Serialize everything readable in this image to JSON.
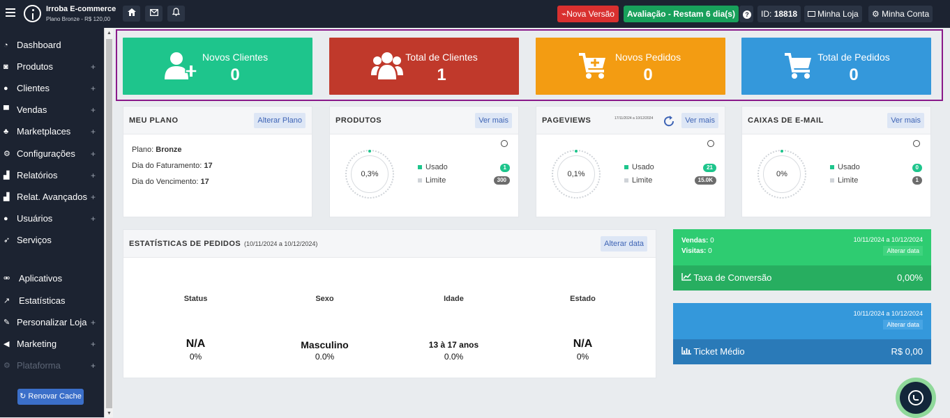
{
  "header": {
    "brand_title": "Irroba E-commerce",
    "brand_subtitle": "Plano Bronze - R$ 120,00",
    "nova_versao": "Nova Versão",
    "avaliacao": "Avaliação - Restam 6 dia(s)",
    "help": "?",
    "id_label": "ID:",
    "id_value": "18818",
    "minha_loja": "Minha Loja",
    "minha_conta": "Minha Conta"
  },
  "sidebar": {
    "items": [
      {
        "label": "Dashboard",
        "icon": "dashboard-icon",
        "expandable": false
      },
      {
        "label": "Produtos",
        "icon": "camera-icon",
        "expandable": true
      },
      {
        "label": "Clientes",
        "icon": "users-icon",
        "expandable": true
      },
      {
        "label": "Vendas",
        "icon": "cart-icon",
        "expandable": true
      },
      {
        "label": "Marketplaces",
        "icon": "sitemap-icon",
        "expandable": true
      },
      {
        "label": "Configurações",
        "icon": "cogs-icon",
        "expandable": true
      },
      {
        "label": "Relatórios",
        "icon": "bar-chart-icon",
        "expandable": true
      },
      {
        "label": "Relat. Avançados",
        "icon": "bar-chart-icon",
        "expandable": true
      },
      {
        "label": "Usuários",
        "icon": "users-icon",
        "expandable": true
      },
      {
        "label": "Serviços",
        "icon": "rocket-icon",
        "expandable": false
      },
      {
        "label": "Aplicativos",
        "icon": "bicycle-icon",
        "expandable": false
      },
      {
        "label": "Estatísticas",
        "icon": "line-chart-icon",
        "expandable": false
      },
      {
        "label": "Personalizar Loja",
        "icon": "brush-icon",
        "expandable": true
      },
      {
        "label": "Marketing",
        "icon": "bullhorn-icon",
        "expandable": true
      },
      {
        "label": "Plataforma",
        "icon": "cogs-icon",
        "expandable": true
      }
    ],
    "renovar_cache": "Renovar Cache"
  },
  "stat_boxes": [
    {
      "title": "Novos Clientes",
      "value": "0",
      "color": "#1ec58c",
      "icon": "user-plus-icon"
    },
    {
      "title": "Total de Clientes",
      "value": "1",
      "color": "#c0392b",
      "icon": "users-icon"
    },
    {
      "title": "Novos Pedidos",
      "value": "0",
      "color": "#f39c12",
      "icon": "cart-plus-icon"
    },
    {
      "title": "Total de Pedidos",
      "value": "0",
      "color": "#3498db",
      "icon": "cart-icon"
    }
  ],
  "meu_plano": {
    "title": "MEU PLANO",
    "button": "Alterar Plano",
    "plano_label": "Plano:",
    "plano_value": "Bronze",
    "faturamento_label": "Dia do Faturamento:",
    "faturamento_value": "17",
    "vencimento_label": "Dia do Vencimento:",
    "vencimento_value": "17"
  },
  "produtos": {
    "title": "PRODUTOS",
    "button": "Ver mais",
    "percent": "0,3%",
    "usado_label": "Usado",
    "usado_value": "1",
    "limite_label": "Limite",
    "limite_value": "300"
  },
  "pageviews": {
    "title": "PAGEVIEWS",
    "date_range": "17/11/2024 a 10/12/2024",
    "button": "Ver mais",
    "percent": "0,1%",
    "usado_label": "Usado",
    "usado_value": "21",
    "limite_label": "Limite",
    "limite_value": "15.0K"
  },
  "caixas_email": {
    "title": "CAIXAS DE E-MAIL",
    "button": "Ver mais",
    "percent": "0%",
    "usado_label": "Usado",
    "usado_value": "0",
    "limite_label": "Limite",
    "limite_value": "1"
  },
  "estatisticas": {
    "title": "ESTATÍSTICAS DE PEDIDOS",
    "date_range": "(10/11/2024 a 10/12/2024)",
    "button": "Alterar data",
    "columns": [
      {
        "header": "Status",
        "value": "N/A",
        "percent": "0%"
      },
      {
        "header": "Sexo",
        "value": "Masculino",
        "percent": "0.0%"
      },
      {
        "header": "Idade",
        "value": "13 à 17 anos",
        "percent": "0.0%"
      },
      {
        "header": "Estado",
        "value": "N/A",
        "percent": "0%"
      }
    ]
  },
  "conversao": {
    "vendas_label": "Vendas:",
    "vendas_value": "0",
    "visitas_label": "Visitas:",
    "visitas_value": "0",
    "date_range": "10/11/2024 a 10/12/2024",
    "alterar": "Alterar data",
    "label": "Taxa de Conversão",
    "value": "0,00%"
  },
  "ticket": {
    "date_range": "10/11/2024 a 10/12/2024",
    "alterar": "Alterar data",
    "label": "Ticket Médio",
    "value": "R$ 0,00"
  }
}
